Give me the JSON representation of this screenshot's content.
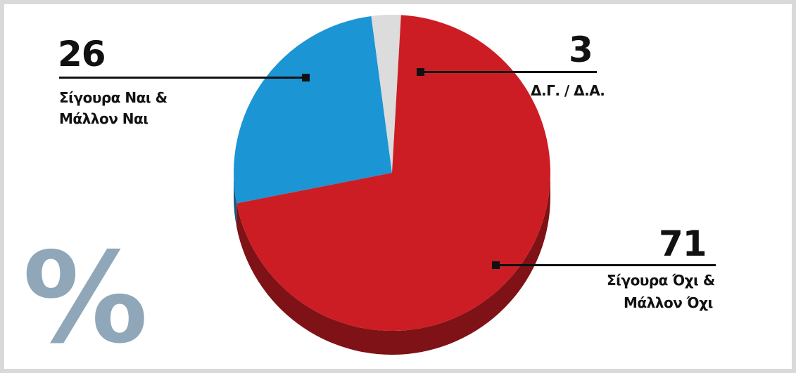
{
  "chart_data": {
    "type": "pie",
    "unit_symbol": "%",
    "slices": [
      {
        "value": 26,
        "number_label": "26",
        "label_lines": [
          "Σίγουρα Ναι &",
          "Μάλλον Ναι"
        ],
        "color": "#1b95d4"
      },
      {
        "value": 3,
        "number_label": "3",
        "label_lines": [
          "Δ.Γ. / Δ.Α."
        ],
        "color": "#dcdcdc"
      },
      {
        "value": 71,
        "number_label": "71",
        "label_lines": [
          "Σίγουρα Όχι &",
          "Μάλλον Όχι"
        ],
        "color": "#cc1d24"
      }
    ]
  }
}
